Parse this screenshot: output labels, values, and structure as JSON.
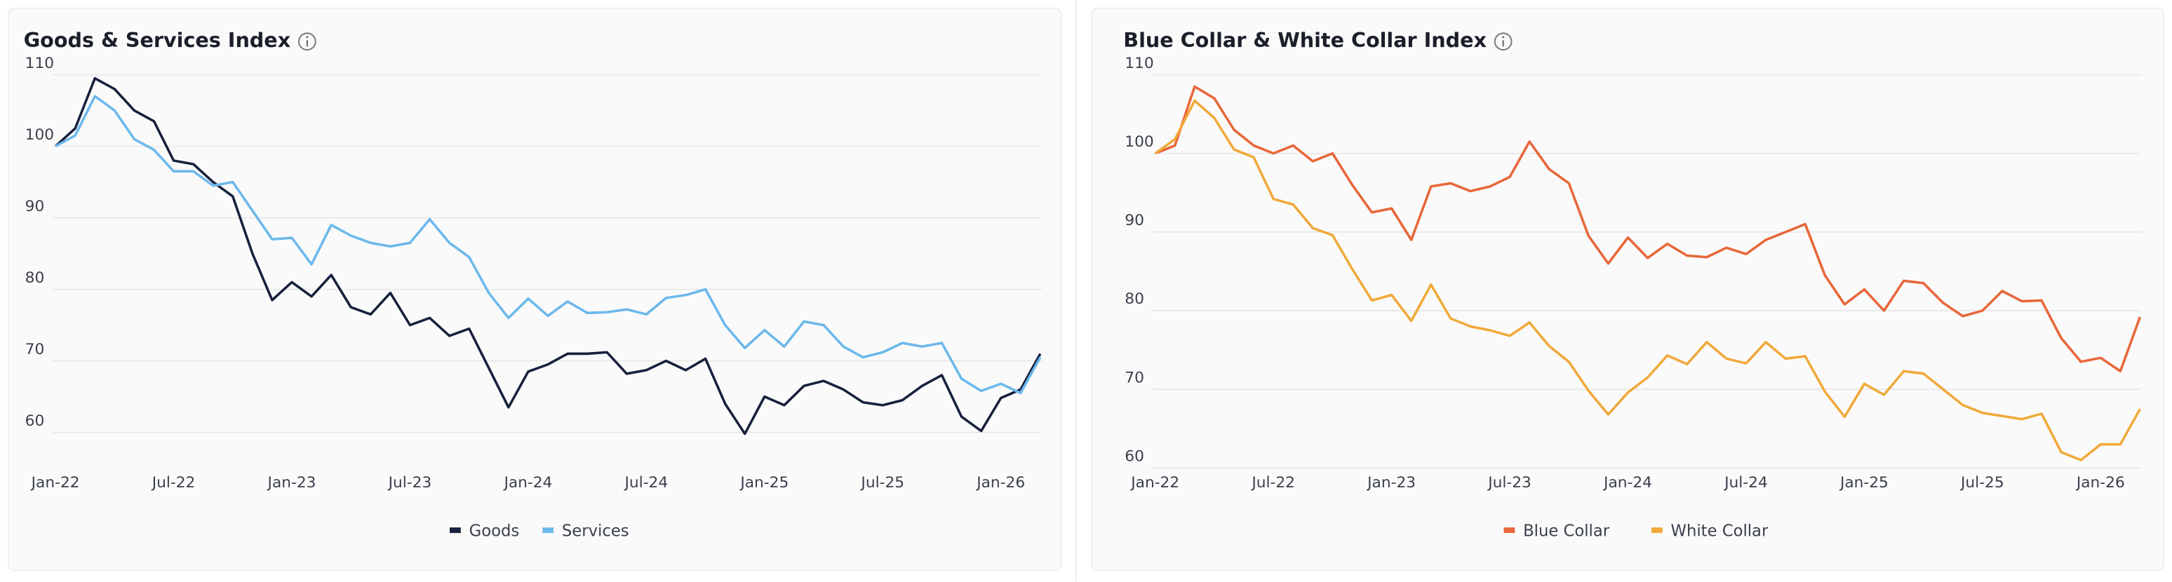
{
  "chart_data": [
    {
      "type": "line",
      "title": "Goods & Services Index",
      "categories": [
        "Jan-22",
        null,
        null,
        null,
        null,
        null,
        "Jul-22",
        null,
        null,
        null,
        null,
        null,
        "Jan-23",
        null,
        null,
        null,
        null,
        null,
        "Jul-23",
        null,
        null,
        null,
        null,
        null,
        "Jan-24",
        null,
        null,
        null,
        null,
        null,
        "Jul-24",
        null,
        null,
        null,
        null,
        null,
        "Jan-25",
        null,
        null,
        null,
        null,
        null,
        "Jul-25",
        null,
        null,
        null,
        null,
        null,
        "Jan-26",
        null,
        null
      ],
      "series": [
        {
          "name": "Goods",
          "color": "#17213d",
          "values": [
            100,
            102.5,
            109.5,
            108,
            105,
            103.5,
            98,
            97.5,
            95,
            93,
            85,
            78.5,
            81,
            79,
            82,
            77.5,
            76.5,
            79.5,
            75,
            76,
            73.5,
            74.5,
            69,
            63.5,
            68.5,
            69.5,
            71,
            71,
            71.2,
            68.2,
            68.7,
            70,
            68.7,
            70.3,
            64,
            59.8,
            65,
            63.8,
            66.5,
            67.2,
            66,
            64.2,
            63.8,
            64.5,
            66.5,
            68,
            62.2,
            60.2,
            64.8,
            66,
            71
          ]
        },
        {
          "name": "Services",
          "color": "#6cb8ec",
          "values": [
            100,
            101.5,
            107,
            105,
            101,
            99.5,
            96.5,
            96.5,
            94.5,
            95,
            91,
            87,
            87.2,
            83.5,
            89,
            87.5,
            86.5,
            86,
            86.5,
            89.8,
            86.5,
            84.5,
            79.5,
            76,
            78.7,
            76.3,
            78.3,
            76.7,
            76.8,
            77.2,
            76.5,
            78.8,
            79.2,
            80,
            75,
            71.8,
            74.3,
            72,
            75.5,
            75,
            72,
            70.5,
            71.2,
            72.5,
            72,
            72.5,
            67.5,
            65.8,
            66.8,
            65.5,
            70.5
          ]
        }
      ],
      "ylim": [
        56,
        110
      ],
      "yticks": [
        60,
        70,
        80,
        90,
        100,
        110
      ],
      "grid": true
    },
    {
      "type": "line",
      "title": "Blue Collar & White Collar Index",
      "categories": [
        "Jan-22",
        null,
        null,
        null,
        null,
        null,
        "Jul-22",
        null,
        null,
        null,
        null,
        null,
        "Jan-23",
        null,
        null,
        null,
        null,
        null,
        "Jul-23",
        null,
        null,
        null,
        null,
        null,
        "Jan-24",
        null,
        null,
        null,
        null,
        null,
        "Jul-24",
        null,
        null,
        null,
        null,
        null,
        "Jan-25",
        null,
        null,
        null,
        null,
        null,
        "Jul-25",
        null,
        null,
        null,
        null,
        null,
        "Jan-26",
        null,
        null
      ],
      "series": [
        {
          "name": "Blue Collar",
          "color": "#e8673a",
          "values": [
            100,
            101,
            108.5,
            107,
            103,
            101,
            100,
            101,
            99,
            100,
            96,
            92.5,
            93,
            89,
            95.8,
            96.2,
            95.2,
            95.8,
            97,
            101.5,
            98,
            96.2,
            89.5,
            86,
            89.3,
            86.7,
            88.5,
            87,
            86.8,
            88,
            87.2,
            89,
            90,
            91,
            84.5,
            80.8,
            82.7,
            80,
            83.8,
            83.5,
            81,
            79.3,
            80,
            82.5,
            81.2,
            81.3,
            76.5,
            73.5,
            74,
            72.3,
            79.2
          ]
        },
        {
          "name": "White Collar",
          "color": "#f0a93a",
          "values": [
            100,
            101.8,
            106.7,
            104.5,
            100.5,
            99.5,
            94.2,
            93.5,
            90.5,
            89.6,
            85.3,
            81.3,
            82,
            78.7,
            83.3,
            79,
            78,
            77.5,
            76.8,
            78.5,
            75.5,
            73.5,
            69.8,
            66.8,
            69.6,
            71.5,
            74.3,
            73.2,
            76,
            73.9,
            73.3,
            76,
            73.9,
            74.2,
            69.7,
            66.5,
            70.7,
            69.3,
            72.3,
            72,
            70,
            68,
            67,
            66.6,
            66.2,
            66.9,
            62,
            61,
            63,
            63,
            67.5
          ]
        }
      ],
      "ylim": [
        60,
        110
      ],
      "yticks": [
        60,
        70,
        80,
        90,
        100,
        110
      ],
      "grid": true
    }
  ]
}
